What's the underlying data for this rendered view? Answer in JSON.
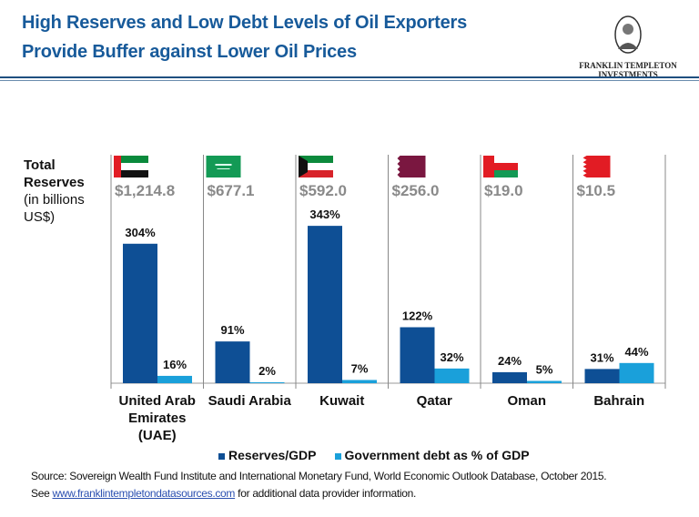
{
  "header": {
    "title_line1": "High Reserves and Low Debt Levels of Oil Exporters",
    "title_line2": "Provide Buffer against Lower Oil Prices",
    "logo_line1": "FRANKLIN TEMPLETON",
    "logo_line2": "INVESTMENTS"
  },
  "chart_data": {
    "type": "bar",
    "categories": [
      "United Arab Emirates (UAE)",
      "Saudi Arabia",
      "Kuwait",
      "Qatar",
      "Oman",
      "Bahrain"
    ],
    "category_lines": [
      [
        "United Arab",
        "Emirates",
        "(UAE)"
      ],
      [
        "Saudi Arabia"
      ],
      [
        "Kuwait"
      ],
      [
        "Qatar"
      ],
      [
        "Oman"
      ],
      [
        "Bahrain"
      ]
    ],
    "total_reserves_label": [
      "Total",
      "Reserves",
      "(in billions",
      "US$)"
    ],
    "total_reserves": [
      "$1,214.8",
      "$677.1",
      "$592.0",
      "$256.0",
      "$19.0",
      "$10.5"
    ],
    "flags": [
      "uae-flag",
      "saudi-arabia-flag",
      "kuwait-flag",
      "qatar-flag",
      "oman-flag",
      "bahrain-flag"
    ],
    "series": [
      {
        "name": "Reserves/GDP",
        "values": [
          304,
          91,
          343,
          122,
          24,
          31
        ],
        "color": "#0e4f95"
      },
      {
        "name": "Government debt as % of GDP",
        "values": [
          16,
          2,
          7,
          32,
          5,
          44
        ],
        "color": "#1aa0da"
      }
    ],
    "value_suffix": "%",
    "ylim": [
      0,
      350
    ],
    "grid": false,
    "legend": "bottom"
  },
  "source": {
    "line1": "Source: Sovereign Wealth Fund Institute and International Monetary Fund, World Economic Outlook Database, October 2015.",
    "line2_prefix": "See ",
    "link": "www.franklintempletondatasources.com",
    "line2_suffix": " for additional data provider information."
  }
}
